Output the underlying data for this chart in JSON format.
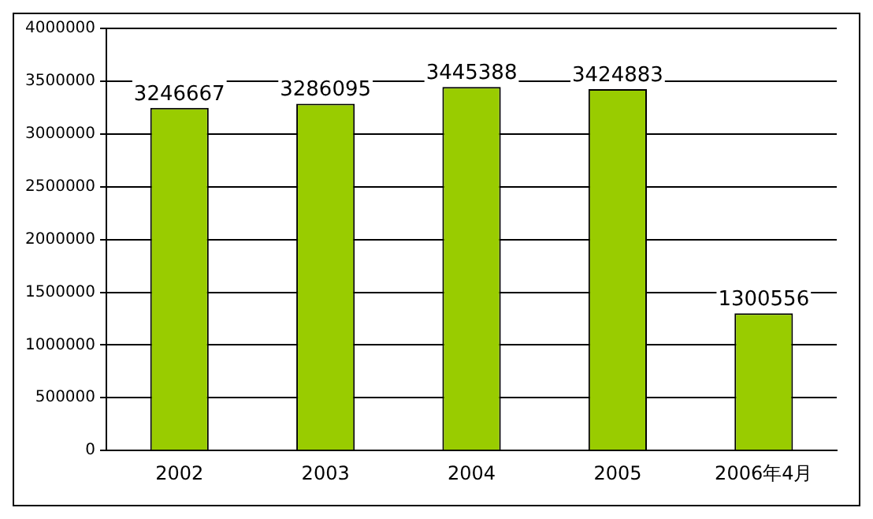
{
  "chart_data": {
    "type": "bar",
    "categories": [
      "2002",
      "2003",
      "2004",
      "2005",
      "2006年4月"
    ],
    "values": [
      3246667,
      3286095,
      3445388,
      3424883,
      1300556
    ],
    "color": "#99cc00",
    "ylim": [
      0,
      4000000
    ],
    "yticks": [
      0,
      500000,
      1000000,
      1500000,
      2000000,
      2500000,
      3000000,
      3500000,
      4000000
    ],
    "grid": "y",
    "data_labels": true,
    "legend": false
  }
}
